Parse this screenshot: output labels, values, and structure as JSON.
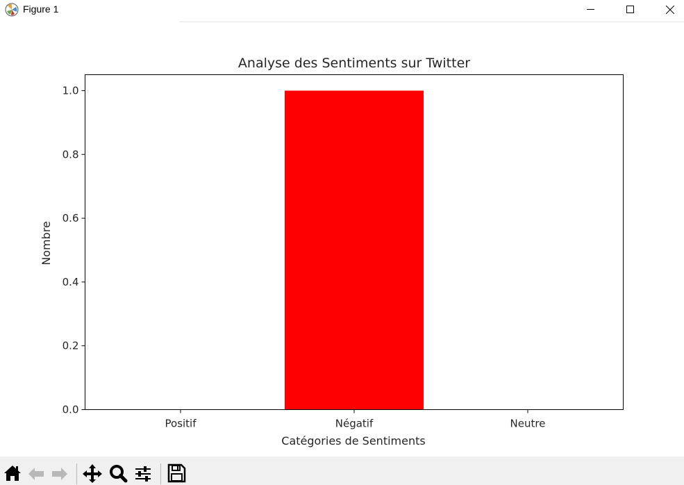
{
  "window": {
    "title": "Figure 1",
    "icon": "matplotlib-icon",
    "controls": [
      "minimize-icon",
      "maximize-icon",
      "close-icon"
    ]
  },
  "toolbar": {
    "tools": [
      {
        "name": "home",
        "icon": "home-icon"
      },
      {
        "name": "back",
        "icon": "arrow-left-icon"
      },
      {
        "name": "forward",
        "icon": "arrow-right-icon"
      },
      {
        "name": "pan",
        "icon": "move-icon"
      },
      {
        "name": "zoom",
        "icon": "magnifier-icon"
      },
      {
        "name": "configure-subplots",
        "icon": "sliders-icon"
      },
      {
        "name": "save",
        "icon": "floppy-disk-icon"
      }
    ]
  },
  "chart_data": {
    "type": "bar",
    "title": "Analyse des Sentiments sur Twitter",
    "xlabel": "Catégories de Sentiments",
    "ylabel": "Nombre",
    "categories": [
      "Positif",
      "Négatif",
      "Neutre"
    ],
    "values": [
      0,
      1,
      0
    ],
    "colors": [
      "#008000",
      "#ff0000",
      "#0000ff"
    ],
    "ylim": [
      0,
      1.05
    ],
    "yticks": [
      "0.0",
      "0.2",
      "0.4",
      "0.6",
      "0.8",
      "1.0"
    ],
    "ytick_values": [
      0,
      0.2,
      0.4,
      0.6,
      0.8,
      1.0
    ],
    "grid": false
  }
}
